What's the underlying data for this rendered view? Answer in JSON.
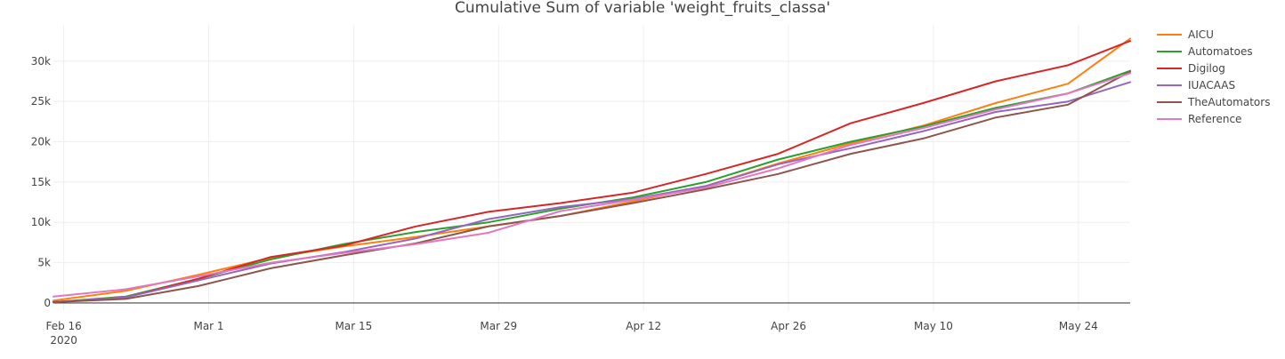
{
  "chart_data": {
    "type": "line",
    "title": "Cumulative Sum of variable 'weight_fruits_classa'",
    "xlabel": "",
    "ylabel": "",
    "x_range": [
      "2020-02-15",
      "2020-05-29"
    ],
    "ylim": [
      -1000,
      34500
    ],
    "grid": true,
    "legend_position": "right",
    "x_ticks": [
      {
        "date": "2020-02-16",
        "label": "Feb 16",
        "sublabel": "2020"
      },
      {
        "date": "2020-03-01",
        "label": "Mar 1"
      },
      {
        "date": "2020-03-15",
        "label": "Mar 15"
      },
      {
        "date": "2020-03-29",
        "label": "Mar 29"
      },
      {
        "date": "2020-04-12",
        "label": "Apr 12"
      },
      {
        "date": "2020-04-26",
        "label": "Apr 26"
      },
      {
        "date": "2020-05-10",
        "label": "May 10"
      },
      {
        "date": "2020-05-24",
        "label": "May 24"
      }
    ],
    "y_ticks": [
      {
        "value": 0,
        "label": "0"
      },
      {
        "value": 5000,
        "label": "5k"
      },
      {
        "value": 10000,
        "label": "10k"
      },
      {
        "value": 15000,
        "label": "15k"
      },
      {
        "value": 20000,
        "label": "20k"
      },
      {
        "value": 25000,
        "label": "25k"
      },
      {
        "value": 30000,
        "label": "30k"
      }
    ],
    "x": [
      "2020-02-15",
      "2020-02-22",
      "2020-02-29",
      "2020-03-07",
      "2020-03-14",
      "2020-03-21",
      "2020-03-28",
      "2020-04-04",
      "2020-04-11",
      "2020-04-18",
      "2020-04-25",
      "2020-05-02",
      "2020-05-09",
      "2020-05-16",
      "2020-05-23",
      "2020-05-29"
    ],
    "series": [
      {
        "name": "AICU",
        "color": "#ff7f0e",
        "values": [
          300,
          1500,
          3500,
          5600,
          7000,
          8200,
          9500,
          10800,
          12600,
          14500,
          17300,
          19800,
          22000,
          24800,
          27200,
          32800
        ]
      },
      {
        "name": "Automatoes",
        "color": "#2ca02c",
        "values": [
          100,
          800,
          3000,
          5400,
          7300,
          8800,
          10000,
          11700,
          13100,
          15000,
          17800,
          20000,
          21900,
          24200,
          26000,
          28800
        ]
      },
      {
        "name": "Digilog",
        "color": "#d62728",
        "values": [
          100,
          700,
          3000,
          5700,
          7100,
          9500,
          11300,
          12400,
          13700,
          16000,
          18500,
          22300,
          24800,
          27500,
          29500,
          32500
        ]
      },
      {
        "name": "IUACAAS",
        "color": "#9467bd",
        "values": [
          100,
          700,
          2800,
          4900,
          6300,
          8000,
          10400,
          11900,
          12900,
          14500,
          17200,
          19200,
          21300,
          23700,
          25000,
          27400
        ]
      },
      {
        "name": "TheAutomators",
        "color": "#8c564b",
        "values": [
          100,
          500,
          2100,
          4300,
          5900,
          7400,
          9500,
          10800,
          12400,
          14100,
          16000,
          18500,
          20400,
          23000,
          24600,
          28700
        ]
      },
      {
        "name": "Reference",
        "color": "#e377c2",
        "values": [
          800,
          1700,
          3300,
          5000,
          6200,
          7300,
          8700,
          11400,
          12800,
          14300,
          16700,
          19600,
          21700,
          24000,
          26000,
          28500
        ]
      }
    ]
  }
}
